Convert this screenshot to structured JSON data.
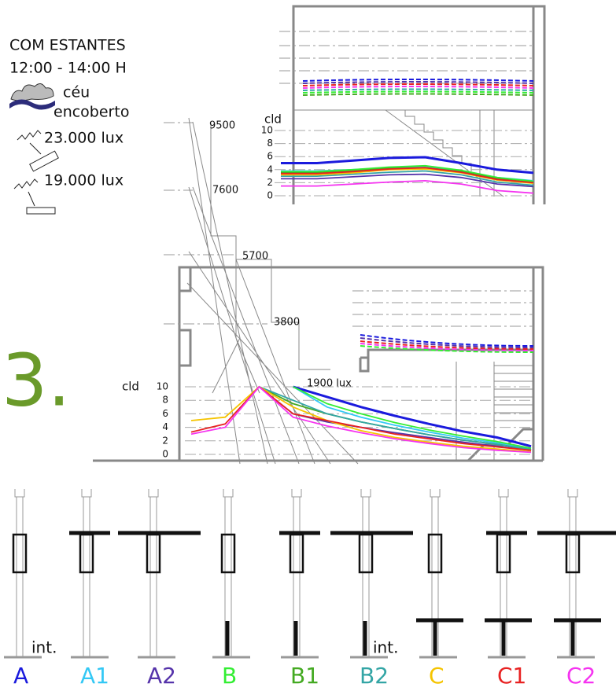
{
  "notes": {
    "title": "COM ESTANTES",
    "time": "12:00 - 14:00 H",
    "sky_1": "céu",
    "sky_2": "encoberto",
    "lux_sky": "23.000 lux",
    "lux_ground": "19.000 lux",
    "figure": "3.",
    "iso_lines": [
      "9500",
      "7600",
      "5700",
      "3800",
      "1900 lux"
    ],
    "inner_1": "int.",
    "inner_2": "int."
  },
  "chart_data": [
    {
      "type": "line",
      "ylabel": "cld",
      "categories": [
        null,
        null,
        null,
        null,
        null,
        null,
        null,
        null
      ],
      "ylim": [
        0,
        10
      ],
      "yticks": [
        0,
        2,
        4,
        6,
        8,
        10
      ],
      "grid": true,
      "series": [
        {
          "name": "A",
          "color": "#1a1add",
          "values": [
            5.0,
            5.0,
            5.4,
            5.8,
            5.9,
            5.0,
            4.0,
            3.5
          ]
        },
        {
          "name": "A1",
          "color": "#33c8f5",
          "values": [
            3.8,
            3.8,
            4.0,
            4.3,
            4.5,
            3.8,
            2.8,
            2.3
          ]
        },
        {
          "name": "A2",
          "color": "#5533aa",
          "values": [
            2.6,
            2.6,
            2.9,
            3.2,
            3.3,
            2.8,
            1.8,
            1.4
          ]
        },
        {
          "name": "B",
          "color": "#33ee33",
          "values": [
            3.7,
            3.7,
            4.0,
            4.4,
            4.6,
            3.9,
            2.8,
            2.2
          ]
        },
        {
          "name": "B1",
          "color": "#44aa22",
          "values": [
            3.5,
            3.5,
            3.8,
            4.2,
            4.3,
            3.7,
            2.6,
            2.0
          ]
        },
        {
          "name": "B2",
          "color": "#33a5a5",
          "values": [
            3.0,
            3.0,
            3.3,
            3.6,
            3.8,
            3.2,
            2.1,
            1.6
          ]
        },
        {
          "name": "C",
          "color": "#f5c400",
          "values": [
            3.2,
            3.2,
            3.5,
            4.0,
            4.1,
            3.5,
            2.4,
            1.9
          ]
        },
        {
          "name": "C1",
          "color": "#e82222",
          "values": [
            3.4,
            3.4,
            3.7,
            4.1,
            4.3,
            3.6,
            2.5,
            2.0
          ]
        },
        {
          "name": "C2",
          "color": "#f533f0",
          "values": [
            1.5,
            1.5,
            1.8,
            2.1,
            2.3,
            1.8,
            0.8,
            0.4
          ]
        }
      ]
    },
    {
      "type": "line",
      "ylabel": "cld",
      "categories": [
        null,
        null,
        null,
        null,
        null,
        null,
        null,
        null,
        null,
        null,
        null
      ],
      "ylim": [
        0,
        10
      ],
      "yticks": [
        0,
        2,
        4,
        6,
        8,
        10
      ],
      "grid": true,
      "series": [
        {
          "color": "#1a1add",
          "values": [
            null,
            null,
            null,
            10,
            8.5,
            7,
            5.7,
            4.5,
            3.4,
            2.5,
            1.2
          ]
        },
        {
          "color": "#33c8f5",
          "values": [
            null,
            null,
            null,
            10,
            7,
            5.5,
            4.3,
            3.3,
            2.4,
            1.7,
            0.9
          ]
        },
        {
          "color": "#5533aa",
          "values": [
            null,
            null,
            10,
            6,
            4.8,
            4,
            3.2,
            2.5,
            1.8,
            1.2,
            0.6
          ]
        },
        {
          "color": "#33ee33",
          "values": [
            null,
            null,
            null,
            10,
            7.5,
            6,
            4.7,
            3.6,
            2.7,
            1.9,
            0.9
          ]
        },
        {
          "color": "#44aa22",
          "values": [
            null,
            null,
            10,
            7.5,
            6,
            4.8,
            3.8,
            2.9,
            2.1,
            1.5,
            0.7
          ]
        },
        {
          "color": "#33a5a5",
          "values": [
            null,
            null,
            10,
            8,
            6,
            4.8,
            3.8,
            2.9,
            2.1,
            1.5,
            0.7
          ]
        },
        {
          "color": "#f5c400",
          "values": [
            5,
            5.5,
            10,
            7,
            5,
            3.5,
            2.5,
            1.8,
            1.2,
            0.8,
            0.4
          ]
        },
        {
          "color": "#e82222",
          "values": [
            3.3,
            4.5,
            10,
            6,
            5,
            4,
            3,
            2.3,
            1.6,
            1.1,
            0.6
          ]
        },
        {
          "color": "#f533f0",
          "values": [
            3,
            4,
            10,
            5.5,
            4.2,
            3.2,
            2.3,
            1.6,
            1.0,
            0.6,
            0.3
          ]
        }
      ]
    }
  ]
}
